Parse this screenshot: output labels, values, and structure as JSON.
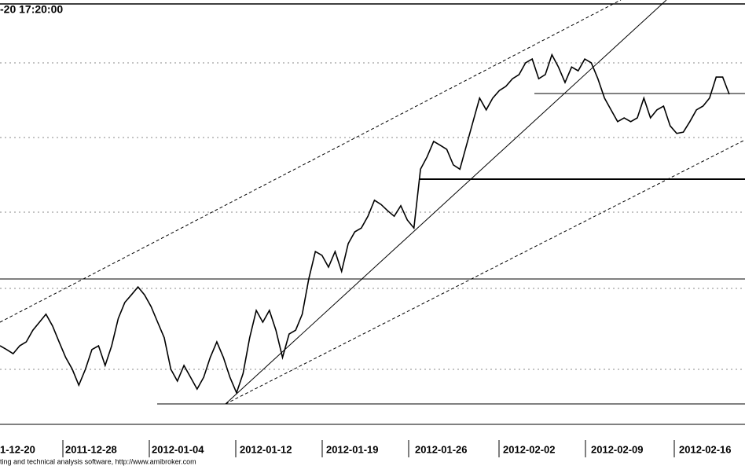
{
  "chart_data": {
    "type": "line",
    "title": "-20 17:20:00",
    "x_tick_labels": [
      "1-12-20",
      "2011-12-28",
      "2012-01-04",
      "2012-01-12",
      "2012-01-19",
      "2012-01-26",
      "2012-02-02",
      "2012-02-09",
      "2012-02-16"
    ],
    "footer": "ting and technical analysis software, http://www.amibroker.com",
    "ylim": [
      0,
      100
    ],
    "color": "#000000",
    "values": [
      18.7,
      17.8,
      16.8,
      18.7,
      19.6,
      22.4,
      24.3,
      26.2,
      23.4,
      19.6,
      15.9,
      13.1,
      9.3,
      13.1,
      17.8,
      18.7,
      14.0,
      18.7,
      25.2,
      29.0,
      30.8,
      32.7,
      30.8,
      28.0,
      24.3,
      20.6,
      13.1,
      10.3,
      14.0,
      11.2,
      8.4,
      11.2,
      15.9,
      19.6,
      15.9,
      11.2,
      7.5,
      12.1,
      20.6,
      27.1,
      24.3,
      27.1,
      22.4,
      15.9,
      21.5,
      22.4,
      26.2,
      34.6,
      41.1,
      40.2,
      37.4,
      41.1,
      36.4,
      43.0,
      45.8,
      46.7,
      49.5,
      53.3,
      52.3,
      50.8,
      49.5,
      52.0,
      48.6,
      46.7,
      60.7,
      63.6,
      67.3,
      66.4,
      65.4,
      61.7,
      60.7,
      66.4,
      72.0,
      77.6,
      74.8,
      77.6,
      79.4,
      80.4,
      82.2,
      83.2,
      86.0,
      86.9,
      82.2,
      83.2,
      87.9,
      85.0,
      81.3,
      85.0,
      84.1,
      86.9,
      86.0,
      82.2,
      77.6,
      74.8,
      72.0,
      72.9,
      72.0,
      72.9,
      77.6,
      72.9,
      74.8,
      75.7,
      71.0,
      69.2,
      69.5,
      72.0,
      74.8,
      75.7,
      77.6,
      82.6,
      82.6,
      78.5
    ]
  }
}
